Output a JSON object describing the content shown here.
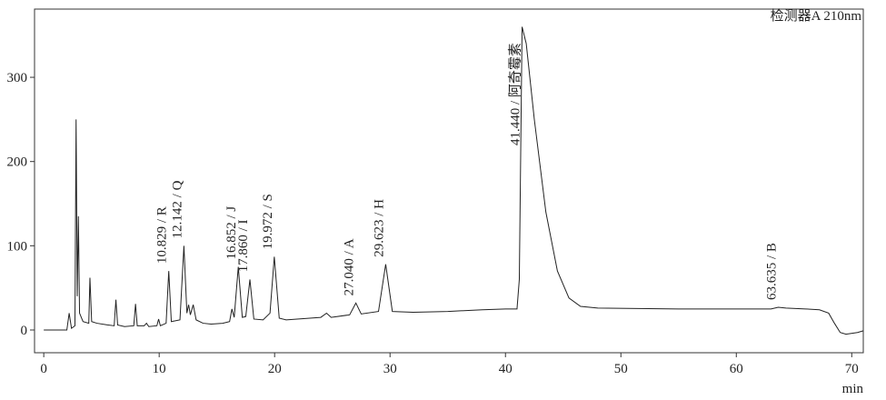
{
  "chart_data": {
    "type": "line",
    "detector": "检测器A 210nm",
    "xlabel": "min",
    "color": "#222222",
    "xlim": [
      -0.8,
      71
    ],
    "ylim": [
      -27,
      381
    ],
    "xticks": [
      0,
      10,
      20,
      30,
      40,
      50,
      60,
      70
    ],
    "yticks": [
      0,
      100,
      200,
      300
    ],
    "x": [
      0,
      2.0,
      2.2,
      2.4,
      2.7,
      2.8,
      2.9,
      3.0,
      3.1,
      3.4,
      3.9,
      4.0,
      4.15,
      4.6,
      5.5,
      6.1,
      6.25,
      6.4,
      7.0,
      7.8,
      7.95,
      8.1,
      8.7,
      8.9,
      9.1,
      9.8,
      9.95,
      10.1,
      10.6,
      10.829,
      11.05,
      11.8,
      12.142,
      12.4,
      12.55,
      12.7,
      12.95,
      13.2,
      13.8,
      14.5,
      15.5,
      16.1,
      16.3,
      16.5,
      16.852,
      17.2,
      17.5,
      17.86,
      18.2,
      19.0,
      19.6,
      19.972,
      20.4,
      21,
      24,
      24.5,
      24.9,
      26.5,
      27.04,
      27.5,
      29.0,
      29.623,
      30.2,
      32,
      35,
      38,
      40,
      41.0,
      41.2,
      41.44,
      41.8,
      42.5,
      43.5,
      44.5,
      45.5,
      46.5,
      48,
      55,
      63.0,
      63.635,
      64.3,
      66,
      67.2,
      68,
      68.5,
      69,
      69.5,
      70.5,
      71
    ],
    "values": [
      0,
      0,
      20,
      2,
      5,
      250,
      40,
      135,
      20,
      10,
      8,
      62,
      10,
      8,
      6,
      5,
      36,
      6,
      4,
      5,
      31,
      5,
      5,
      8,
      4,
      5,
      13,
      5,
      8,
      70,
      10,
      12,
      100,
      20,
      30,
      18,
      30,
      12,
      8,
      7,
      8,
      10,
      25,
      15,
      75,
      15,
      16,
      60,
      13,
      12,
      20,
      87,
      14,
      12,
      15,
      20,
      15,
      18,
      32,
      19,
      22,
      78,
      22,
      21,
      22,
      24,
      25,
      25,
      60,
      360,
      340,
      250,
      140,
      70,
      38,
      28,
      26,
      25,
      25,
      27,
      26,
      25,
      24,
      20,
      8,
      -3,
      -5,
      -3,
      -1
    ],
    "annotations": [
      {
        "x": 10.829,
        "label": "10.829 / R"
      },
      {
        "x": 12.142,
        "label": "12.142 / Q"
      },
      {
        "x": 16.852,
        "label": "16.852 / J"
      },
      {
        "x": 17.86,
        "label": "17.860 / I"
      },
      {
        "x": 19.972,
        "label": "19.972 / S"
      },
      {
        "x": 27.04,
        "label": "27.040 / A"
      },
      {
        "x": 29.623,
        "label": "29.623 / H"
      },
      {
        "x": 41.44,
        "label": "41.440 / 阿奇霉素"
      },
      {
        "x": 63.635,
        "label": "63.635 / B"
      }
    ]
  }
}
